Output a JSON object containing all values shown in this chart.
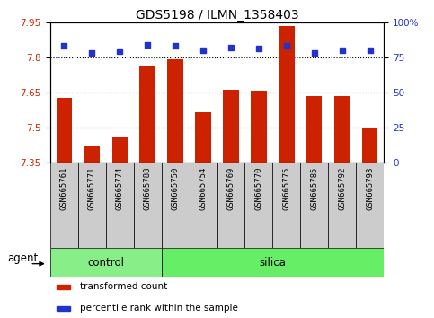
{
  "title": "GDS5198 / ILMN_1358403",
  "categories": [
    "GSM665761",
    "GSM665771",
    "GSM665774",
    "GSM665788",
    "GSM665750",
    "GSM665754",
    "GSM665769",
    "GSM665770",
    "GSM665775",
    "GSM665785",
    "GSM665792",
    "GSM665793"
  ],
  "bar_values": [
    7.625,
    7.42,
    7.46,
    7.76,
    7.79,
    7.565,
    7.66,
    7.655,
    7.935,
    7.635,
    7.635,
    7.5
  ],
  "percentile_values": [
    83,
    78,
    79,
    84,
    83,
    80,
    82,
    81,
    83,
    78,
    80,
    80
  ],
  "control_count": 4,
  "silica_count": 8,
  "ylim_left": [
    7.35,
    7.95
  ],
  "ylim_right": [
    0,
    100
  ],
  "yticks_left": [
    7.35,
    7.5,
    7.65,
    7.8,
    7.95
  ],
  "yticks_right": [
    0,
    25,
    50,
    75,
    100
  ],
  "ytick_labels_left": [
    "7.35",
    "7.5",
    "7.65",
    "7.8",
    "7.95"
  ],
  "ytick_labels_right": [
    "0",
    "25",
    "50",
    "75",
    "100%"
  ],
  "hlines": [
    7.5,
    7.65,
    7.8
  ],
  "bar_color": "#cc2200",
  "percentile_color": "#2233cc",
  "control_color": "#88ee88",
  "silica_color": "#66ee66",
  "bg_color": "#cccccc",
  "agent_label": "agent",
  "control_label": "control",
  "silica_label": "silica",
  "legend_bar_label": "transformed count",
  "legend_pct_label": "percentile rank within the sample",
  "title_fontsize": 10,
  "tick_fontsize": 7.5,
  "label_fontsize": 8.5,
  "cat_fontsize": 6.5
}
